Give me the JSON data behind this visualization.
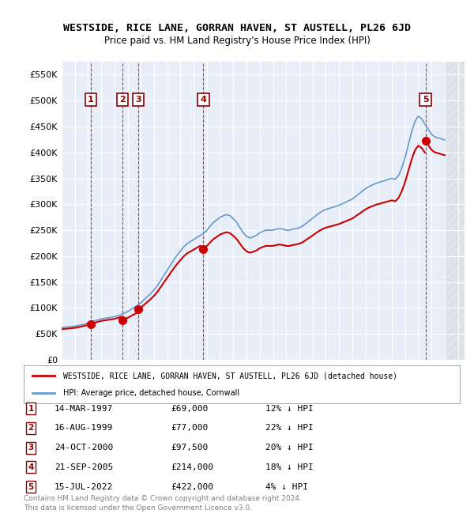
{
  "title": "WESTSIDE, RICE LANE, GORRAN HAVEN, ST AUSTELL, PL26 6JD",
  "subtitle": "Price paid vs. HM Land Registry's House Price Index (HPI)",
  "background_color": "#e8eef8",
  "plot_bg_color": "#e8eef8",
  "ylim": [
    0,
    575000
  ],
  "yticks": [
    0,
    50000,
    100000,
    150000,
    200000,
    250000,
    300000,
    350000,
    400000,
    450000,
    500000,
    550000
  ],
  "ytick_labels": [
    "£0",
    "£50K",
    "£100K",
    "£150K",
    "£200K",
    "£250K",
    "£300K",
    "£350K",
    "£400K",
    "£450K",
    "£500K",
    "£550K"
  ],
  "xlim_start": 1995.0,
  "xlim_end": 2025.5,
  "sales": [
    {
      "num": 1,
      "date": "14-MAR-1997",
      "year": 1997.2,
      "price": 69000,
      "hpi_pct": "12% ↓ HPI"
    },
    {
      "num": 2,
      "date": "16-AUG-1999",
      "year": 1999.62,
      "price": 77000,
      "hpi_pct": "22% ↓ HPI"
    },
    {
      "num": 3,
      "date": "24-OCT-2000",
      "year": 2000.82,
      "price": 97500,
      "hpi_pct": "20% ↓ HPI"
    },
    {
      "num": 4,
      "date": "21-SEP-2005",
      "year": 2005.72,
      "price": 214000,
      "hpi_pct": "18% ↓ HPI"
    },
    {
      "num": 5,
      "date": "15-JUL-2022",
      "year": 2022.54,
      "price": 422000,
      "hpi_pct": "4% ↓ HPI"
    }
  ],
  "red_line_color": "#cc0000",
  "blue_line_color": "#6699cc",
  "marker_color": "#cc0000",
  "dashed_color": "#cc0000",
  "legend_line1": "WESTSIDE, RICE LANE, GORRAN HAVEN, ST AUSTELL, PL26 6JD (detached house)",
  "legend_line2": "HPI: Average price, detached house, Cornwall",
  "footer1": "Contains HM Land Registry data © Crown copyright and database right 2024.",
  "footer2": "This data is licensed under the Open Government Licence v3.0.",
  "hpi_years": [
    1995.0,
    1995.25,
    1995.5,
    1995.75,
    1996.0,
    1996.25,
    1996.5,
    1996.75,
    1997.0,
    1997.25,
    1997.5,
    1997.75,
    1998.0,
    1998.25,
    1998.5,
    1998.75,
    1999.0,
    1999.25,
    1999.5,
    1999.75,
    2000.0,
    2000.25,
    2000.5,
    2000.75,
    2001.0,
    2001.25,
    2001.5,
    2001.75,
    2002.0,
    2002.25,
    2002.5,
    2002.75,
    2003.0,
    2003.25,
    2003.5,
    2003.75,
    2004.0,
    2004.25,
    2004.5,
    2004.75,
    2005.0,
    2005.25,
    2005.5,
    2005.75,
    2006.0,
    2006.25,
    2006.5,
    2006.75,
    2007.0,
    2007.25,
    2007.5,
    2007.75,
    2008.0,
    2008.25,
    2008.5,
    2008.75,
    2009.0,
    2009.25,
    2009.5,
    2009.75,
    2010.0,
    2010.25,
    2010.5,
    2010.75,
    2011.0,
    2011.25,
    2011.5,
    2011.75,
    2012.0,
    2012.25,
    2012.5,
    2012.75,
    2013.0,
    2013.25,
    2013.5,
    2013.75,
    2014.0,
    2014.25,
    2014.5,
    2014.75,
    2015.0,
    2015.25,
    2015.5,
    2015.75,
    2016.0,
    2016.25,
    2016.5,
    2016.75,
    2017.0,
    2017.25,
    2017.5,
    2017.75,
    2018.0,
    2018.25,
    2018.5,
    2018.75,
    2019.0,
    2019.25,
    2019.5,
    2019.75,
    2020.0,
    2020.25,
    2020.5,
    2020.75,
    2021.0,
    2021.25,
    2021.5,
    2021.75,
    2022.0,
    2022.25,
    2022.5,
    2022.75,
    2023.0,
    2023.25,
    2023.5,
    2023.75,
    2024.0
  ],
  "hpi_values": [
    62000,
    63000,
    63500,
    64000,
    65000,
    66000,
    67500,
    69000,
    71000,
    73000,
    75000,
    77000,
    79000,
    80000,
    81000,
    82000,
    83000,
    85000,
    87000,
    90000,
    93000,
    97000,
    101000,
    105000,
    110000,
    116000,
    122000,
    128000,
    135000,
    143000,
    153000,
    163000,
    173000,
    183000,
    193000,
    202000,
    210000,
    218000,
    224000,
    228000,
    232000,
    236000,
    240000,
    244000,
    250000,
    258000,
    265000,
    270000,
    275000,
    278000,
    280000,
    278000,
    272000,
    265000,
    255000,
    245000,
    238000,
    235000,
    237000,
    240000,
    245000,
    248000,
    250000,
    250000,
    250000,
    252000,
    253000,
    252000,
    250000,
    250000,
    252000,
    253000,
    255000,
    258000,
    263000,
    268000,
    273000,
    278000,
    283000,
    287000,
    290000,
    292000,
    294000,
    296000,
    298000,
    301000,
    304000,
    307000,
    310000,
    315000,
    320000,
    325000,
    330000,
    334000,
    337000,
    340000,
    342000,
    344000,
    346000,
    348000,
    350000,
    348000,
    355000,
    370000,
    390000,
    415000,
    440000,
    460000,
    470000,
    465000,
    455000,
    445000,
    435000,
    430000,
    428000,
    426000,
    424000
  ]
}
